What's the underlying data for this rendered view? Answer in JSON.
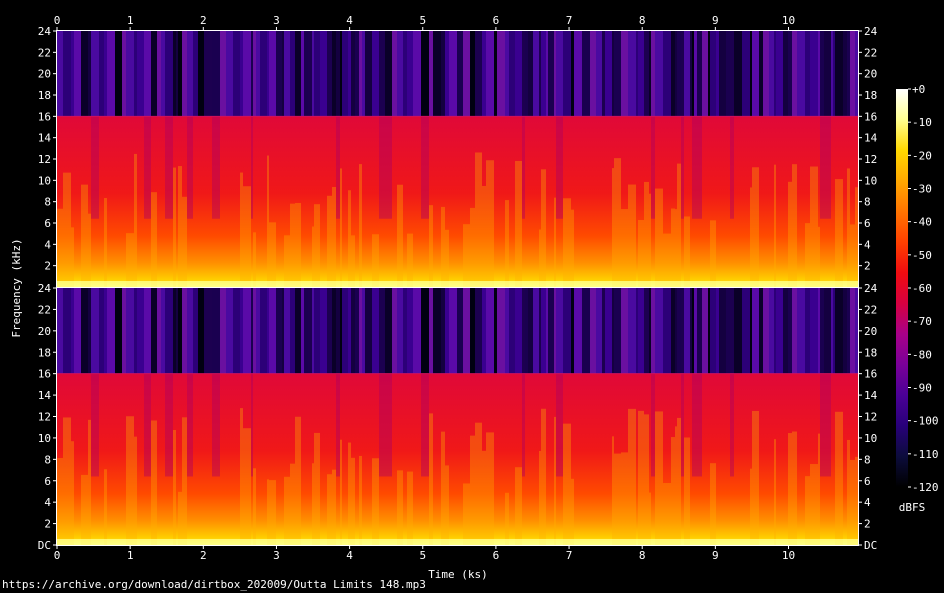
{
  "source_url": "https://archive.org/download/dirtbox_202009/Outta Limits 148.mp3",
  "chart_data": {
    "type": "heatmap",
    "title": "",
    "xlabel": "Time (ks)",
    "ylabel": "Frequency (kHz)",
    "xlim": [
      0,
      10.95
    ],
    "x_ticks": [
      "0",
      "1",
      "2",
      "3",
      "4",
      "5",
      "6",
      "7",
      "8",
      "9",
      "10"
    ],
    "channels": [
      {
        "ylim": [
          0,
          24
        ],
        "y_ticks": [
          "24",
          "22",
          "20",
          "18",
          "16",
          "14",
          "12",
          "10",
          "8",
          "6",
          "4",
          "2"
        ]
      },
      {
        "ylim": [
          0,
          24
        ],
        "y_ticks": [
          "24",
          "22",
          "20",
          "18",
          "16",
          "14",
          "12",
          "10",
          "8",
          "6",
          "4",
          "2",
          "DC"
        ]
      }
    ],
    "lowpass_cutoff_khz": 16,
    "colorbar": {
      "label": "dBFS",
      "range": [
        -120,
        0
      ],
      "ticks": [
        "+0",
        "-10",
        "-20",
        "-30",
        "-40",
        "-50",
        "-60",
        "-70",
        "-80",
        "-90",
        "-100",
        "-110",
        "-120"
      ],
      "colors": [
        "#000000",
        "#0c0c3c",
        "#28007a",
        "#4b0096",
        "#7a0098",
        "#a80088",
        "#d60040",
        "#f00c10",
        "#ff4000",
        "#ff7400",
        "#ffa800",
        "#ffd800",
        "#ffff90",
        "#ffffff"
      ]
    }
  }
}
